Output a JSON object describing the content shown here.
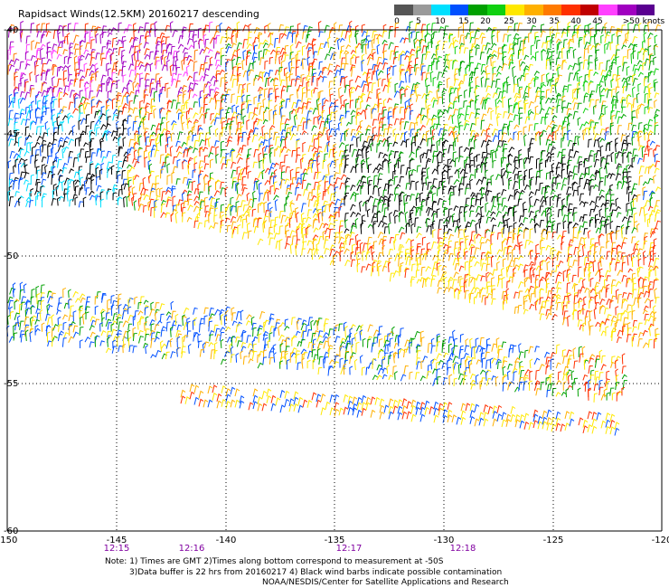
{
  "title": "Rapidsact Winds(12.5KM) 20160217 descending",
  "legend": {
    "unit": ">50 knots",
    "labels": [
      "0",
      "5",
      "10",
      "15",
      "20",
      "25",
      "30",
      "35",
      "40",
      "45"
    ],
    "colors": [
      "#555555",
      "#9a9a9a",
      "#00e0ff",
      "#0050ff",
      "#00a000",
      "#10d010",
      "#ffe800",
      "#ffb000",
      "#ff7a00",
      "#ff3000",
      "#c00000",
      "#ff40ff",
      "#a000c0",
      "#5a0090"
    ]
  },
  "axes": {
    "lon_labels": [
      "-150",
      "-145",
      "-140",
      "-135",
      "-130",
      "-125",
      "-120"
    ],
    "lat_labels": [
      "-40",
      "-45",
      "-50",
      "-55",
      "-60"
    ]
  },
  "times": [
    "12:15",
    "12:16",
    "12:17",
    "12:18"
  ],
  "time_color": "#8000a0",
  "notes": [
    "Note: 1) Times are GMT 2)Times along bottom correspond to measurement at -50S",
    "3)Data buffer is 22 hrs from 20160217 4) Black wind barbs indicate possible contamination",
    "NOAA/NESDIS/Center for Satellite Applications and Research"
  ]
}
